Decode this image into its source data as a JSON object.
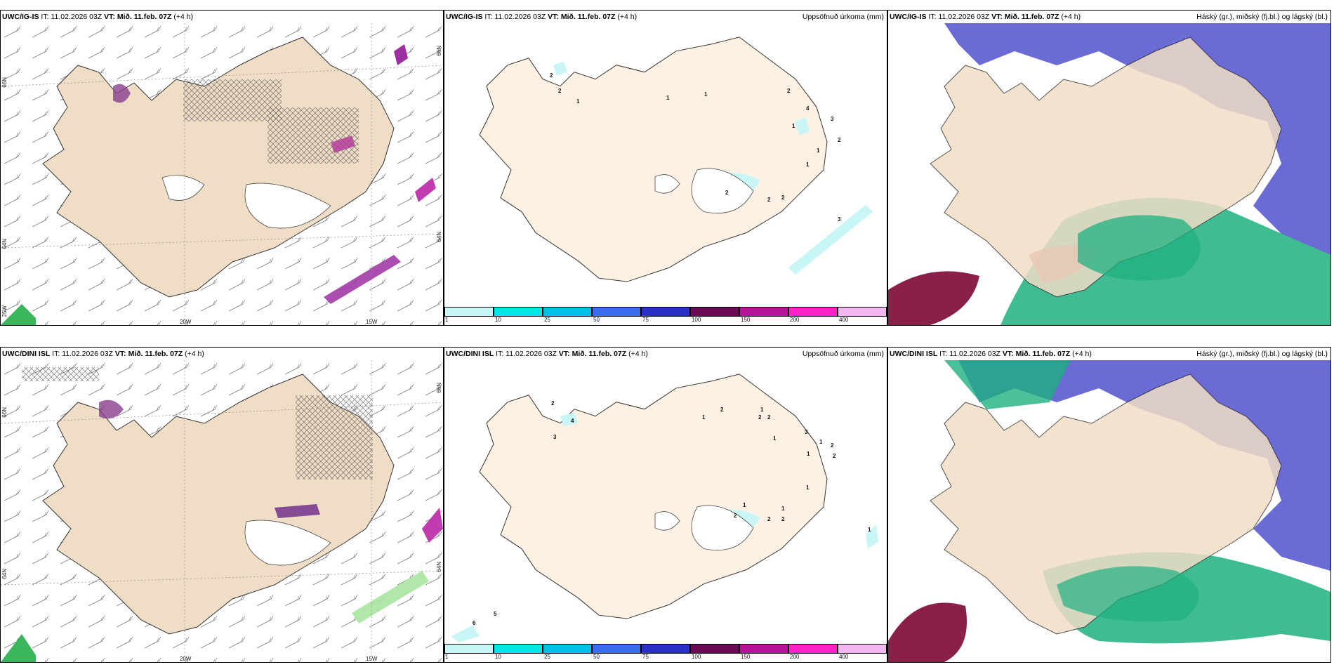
{
  "rows": [
    {
      "model": "UWC/IG-IS",
      "it_label": "IT:",
      "it": "11.02.2026 03Z",
      "vt_label": "VT:",
      "vt": "Mið. 11.feb. 07Z",
      "lead": "(+4 h)",
      "precip_labels": [
        "2",
        "2",
        "1",
        "1",
        "1",
        "2",
        "4",
        "3",
        "2",
        "1",
        "1",
        "1",
        "2",
        "2",
        "2",
        "3"
      ]
    },
    {
      "model": "UWC/DINI ISL",
      "it_label": "IT:",
      "it": "11.02.2026 03Z",
      "vt_label": "VT:",
      "vt": "Mið. 11.feb. 07Z",
      "lead": "(+4 h)",
      "precip_labels": [
        "2",
        "4",
        "3",
        "1",
        "2",
        "1",
        "2",
        "2",
        "3",
        "1",
        "1",
        "2",
        "1",
        "1",
        "2",
        "2",
        "2",
        "2",
        "1",
        "1",
        "1",
        "5",
        "6"
      ]
    }
  ],
  "precip_title": "Uppsöfnuð úrkoma (mm)",
  "cloud_title": "Háský (gr.), miðský (fj.bl.) og lágský (bl.)",
  "map_ticks": {
    "lon": [
      "20W",
      "15W"
    ],
    "lat_left": [
      "66N",
      "64N",
      "25W"
    ],
    "lat_right": [
      "66N",
      "64N"
    ]
  },
  "colorbar": {
    "labels": [
      "1",
      "10",
      "25",
      "50",
      "75",
      "100",
      "150",
      "200",
      "400"
    ],
    "colors": [
      "#c8f5f5",
      "#00e5e5",
      "#00bfe8",
      "#3a6cf0",
      "#2a2fc8",
      "#6a0a55",
      "#b8129a",
      "#ff20c8",
      "#f4b6f0"
    ]
  },
  "palette": {
    "land": "#f0ddc6",
    "land_precip": "#fdf1e4",
    "sea_cloud": "#5a5bcf",
    "mid_cloud": "#1fb080",
    "low_cloud": "#8a1f4a"
  }
}
